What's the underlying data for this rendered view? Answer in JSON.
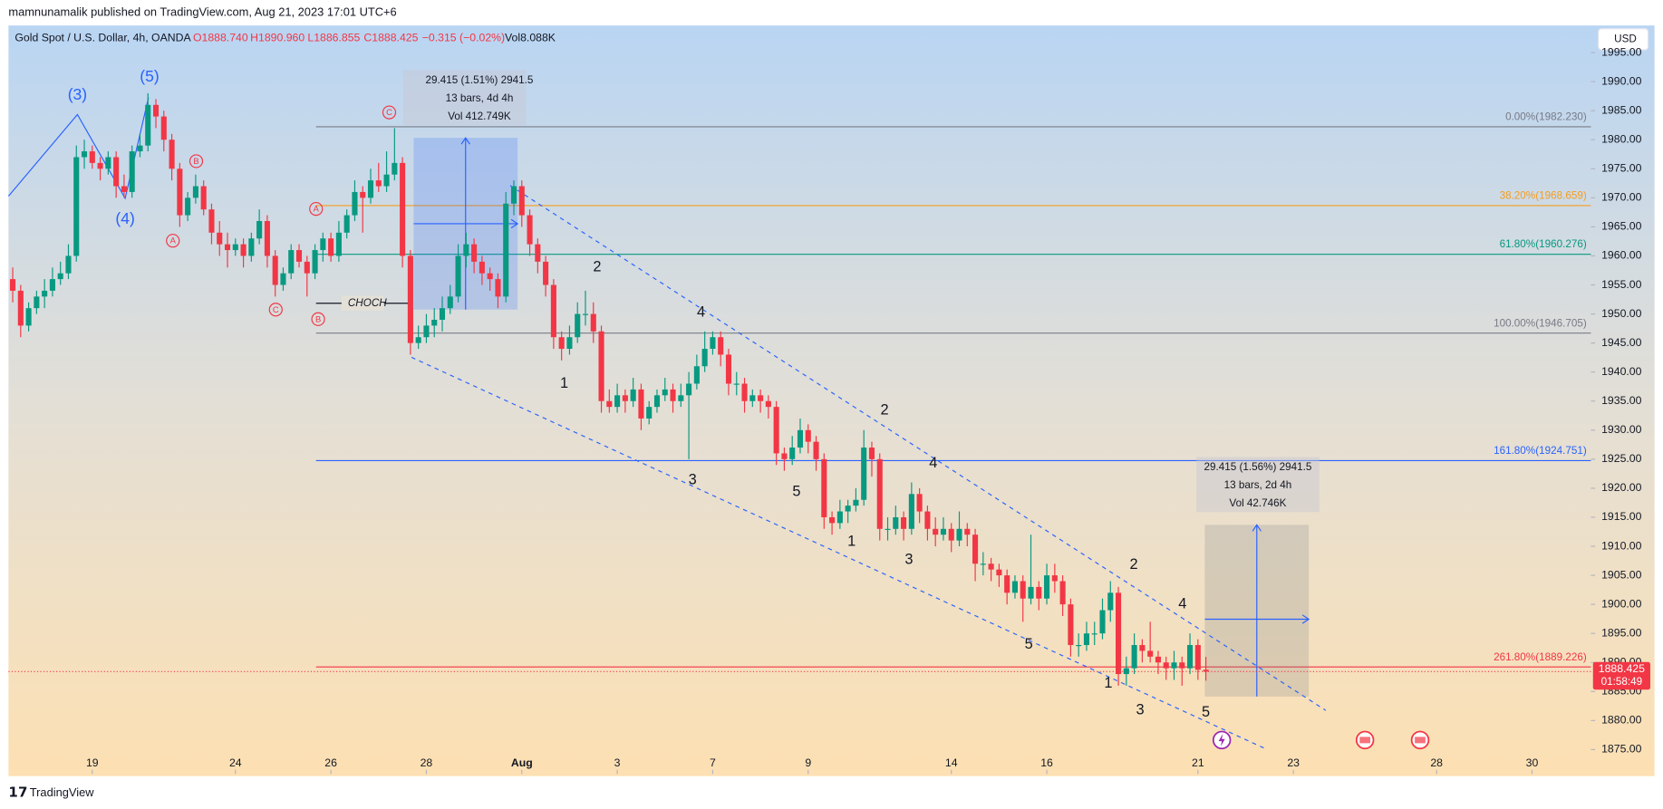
{
  "header": {
    "published": "mamnunamalik published on TradingView.com, Aug 21, 2023 17:01 UTC+6",
    "symbol": "Gold Spot / U.S. Dollar, 4h, OANDA",
    "open": "O1888.740",
    "high": "H1890.960",
    "low": "L1886.855",
    "close": "C1888.425",
    "change": "−0.315 (−0.02%)",
    "volume": "Vol8.088K",
    "currency": "USD",
    "brand": "TradingView"
  },
  "chart_data": {
    "type": "candlestick",
    "up_color": "#089981",
    "down_color": "#f23645",
    "ohlc": [
      [
        1956,
        1958,
        1952,
        1954
      ],
      [
        1954,
        1955,
        1946,
        1948
      ],
      [
        1948,
        1952,
        1947,
        1951
      ],
      [
        1951,
        1954,
        1950,
        1953
      ],
      [
        1953,
        1956,
        1951,
        1954
      ],
      [
        1954,
        1958,
        1953,
        1956
      ],
      [
        1956,
        1959,
        1955,
        1957
      ],
      [
        1957,
        1962,
        1956,
        1960
      ],
      [
        1960,
        1979,
        1959,
        1977
      ],
      [
        1977,
        1980,
        1975,
        1978
      ],
      [
        1978,
        1979,
        1975,
        1976
      ],
      [
        1976,
        1977,
        1973,
        1975
      ],
      [
        1975,
        1978,
        1974,
        1977
      ],
      [
        1977,
        1978,
        1970,
        1972
      ],
      [
        1972,
        1974,
        1970,
        1971
      ],
      [
        1971,
        1979,
        1970,
        1978
      ],
      [
        1978,
        1981,
        1977,
        1979
      ],
      [
        1979,
        1988,
        1978,
        1986
      ],
      [
        1986,
        1987,
        1982,
        1984
      ],
      [
        1984,
        1985,
        1978,
        1980
      ],
      [
        1980,
        1981,
        1973,
        1975
      ],
      [
        1975,
        1976,
        1965,
        1967
      ],
      [
        1967,
        1971,
        1966,
        1970
      ],
      [
        1970,
        1974,
        1969,
        1972
      ],
      [
        1972,
        1973,
        1967,
        1968
      ],
      [
        1968,
        1969,
        1962,
        1964
      ],
      [
        1964,
        1966,
        1960,
        1962
      ],
      [
        1962,
        1964,
        1958,
        1961
      ],
      [
        1961,
        1963,
        1960,
        1962
      ],
      [
        1962,
        1963,
        1958,
        1960
      ],
      [
        1960,
        1964,
        1959,
        1963
      ],
      [
        1963,
        1968,
        1962,
        1966
      ],
      [
        1966,
        1967,
        1958,
        1960
      ],
      [
        1960,
        1961,
        1953,
        1955
      ],
      [
        1955,
        1958,
        1954,
        1957
      ],
      [
        1957,
        1962,
        1956,
        1961
      ],
      [
        1961,
        1962,
        1958,
        1959
      ],
      [
        1959,
        1960,
        1953,
        1957
      ],
      [
        1957,
        1962,
        1956,
        1961
      ],
      [
        1961,
        1964,
        1959,
        1963
      ],
      [
        1963,
        1964,
        1959,
        1960
      ],
      [
        1960,
        1966,
        1959,
        1964
      ],
      [
        1964,
        1968,
        1963,
        1967
      ],
      [
        1967,
        1973,
        1966,
        1971
      ],
      [
        1971,
        1972,
        1964,
        1970
      ],
      [
        1970,
        1975,
        1969,
        1973
      ],
      [
        1973,
        1976,
        1971,
        1972
      ],
      [
        1972,
        1978,
        1971,
        1974
      ],
      [
        1974,
        1982,
        1973,
        1976
      ],
      [
        1976,
        1977,
        1958,
        1960
      ],
      [
        1960,
        1961,
        1943,
        1945
      ],
      [
        1945,
        1948,
        1944,
        1946
      ],
      [
        1946,
        1950,
        1945,
        1948
      ],
      [
        1948,
        1951,
        1946,
        1949
      ],
      [
        1949,
        1953,
        1947,
        1951
      ],
      [
        1951,
        1955,
        1950,
        1953
      ],
      [
        1953,
        1962,
        1952,
        1960
      ],
      [
        1960,
        1964,
        1958,
        1962
      ],
      [
        1962,
        1963,
        1957,
        1959
      ],
      [
        1959,
        1960,
        1955,
        1957
      ],
      [
        1957,
        1958,
        1954,
        1956
      ],
      [
        1956,
        1957,
        1951,
        1953
      ],
      [
        1953,
        1971,
        1952,
        1969
      ],
      [
        1969,
        1973,
        1967,
        1972
      ],
      [
        1972,
        1973,
        1965,
        1967
      ],
      [
        1967,
        1968,
        1960,
        1962
      ],
      [
        1962,
        1963,
        1957,
        1959
      ],
      [
        1959,
        1960,
        1953,
        1955
      ],
      [
        1955,
        1956,
        1944,
        1946
      ],
      [
        1946,
        1947,
        1942,
        1944
      ],
      [
        1944,
        1948,
        1943,
        1946
      ],
      [
        1946,
        1952,
        1945,
        1950
      ],
      [
        1950,
        1954,
        1948,
        1950
      ],
      [
        1950,
        1952,
        1945,
        1947
      ],
      [
        1947,
        1948,
        1933,
        1935
      ],
      [
        1935,
        1937,
        1933,
        1934
      ],
      [
        1934,
        1938,
        1933,
        1936
      ],
      [
        1936,
        1937,
        1933,
        1935
      ],
      [
        1935,
        1939,
        1934,
        1937
      ],
      [
        1937,
        1938,
        1930,
        1932
      ],
      [
        1932,
        1935,
        1931,
        1934
      ],
      [
        1934,
        1937,
        1933,
        1936
      ],
      [
        1936,
        1939,
        1935,
        1937
      ],
      [
        1937,
        1938,
        1933,
        1935
      ],
      [
        1935,
        1938,
        1934,
        1936
      ],
      [
        1936,
        1940,
        1925,
        1938
      ],
      [
        1938,
        1943,
        1937,
        1941
      ],
      [
        1941,
        1947,
        1940,
        1944
      ],
      [
        1944,
        1947,
        1943,
        1946
      ],
      [
        1946,
        1947,
        1941,
        1943
      ],
      [
        1943,
        1944,
        1936,
        1938
      ],
      [
        1938,
        1940,
        1936,
        1938
      ],
      [
        1938,
        1939,
        1933,
        1935
      ],
      [
        1935,
        1937,
        1934,
        1936
      ],
      [
        1936,
        1937,
        1933,
        1935
      ],
      [
        1935,
        1936,
        1932,
        1934
      ],
      [
        1934,
        1935,
        1924,
        1926
      ],
      [
        1926,
        1927,
        1923,
        1925
      ],
      [
        1925,
        1929,
        1924,
        1927
      ],
      [
        1927,
        1932,
        1926,
        1930
      ],
      [
        1930,
        1931,
        1926,
        1928
      ],
      [
        1928,
        1929,
        1923,
        1925
      ],
      [
        1925,
        1926,
        1913,
        1915
      ],
      [
        1915,
        1916,
        1912,
        1914
      ],
      [
        1914,
        1918,
        1913,
        1916
      ],
      [
        1916,
        1918,
        1914,
        1917
      ],
      [
        1917,
        1920,
        1916,
        1918
      ],
      [
        1918,
        1930,
        1917,
        1927
      ],
      [
        1927,
        1928,
        1922,
        1925
      ],
      [
        1925,
        1926,
        1911,
        1913
      ],
      [
        1913,
        1915,
        1911,
        1913
      ],
      [
        1913,
        1917,
        1912,
        1915
      ],
      [
        1915,
        1916,
        1911,
        1913
      ],
      [
        1913,
        1921,
        1912,
        1919
      ],
      [
        1919,
        1920,
        1914,
        1916
      ],
      [
        1916,
        1917,
        1911,
        1913
      ],
      [
        1913,
        1915,
        1910,
        1912
      ],
      [
        1912,
        1915,
        1911,
        1913
      ],
      [
        1913,
        1914,
        1909,
        1911
      ],
      [
        1911,
        1916,
        1910,
        1913
      ],
      [
        1913,
        1914,
        1910,
        1912
      ],
      [
        1912,
        1913,
        1904,
        1907
      ],
      [
        1907,
        1909,
        1905,
        1907
      ],
      [
        1907,
        1908,
        1904,
        1906
      ],
      [
        1906,
        1907,
        1903,
        1905
      ],
      [
        1905,
        1906,
        1900,
        1902
      ],
      [
        1902,
        1905,
        1901,
        1904
      ],
      [
        1904,
        1905,
        1897,
        1901
      ],
      [
        1901,
        1912,
        1900,
        1903
      ],
      [
        1903,
        1904,
        1899,
        1901
      ],
      [
        1901,
        1907,
        1900,
        1905
      ],
      [
        1905,
        1907,
        1902,
        1904
      ],
      [
        1904,
        1905,
        1898,
        1900
      ],
      [
        1900,
        1901,
        1891,
        1893
      ],
      [
        1893,
        1895,
        1891,
        1893
      ],
      [
        1893,
        1897,
        1892,
        1895
      ],
      [
        1895,
        1897,
        1893,
        1895
      ],
      [
        1895,
        1901,
        1894,
        1899
      ],
      [
        1899,
        1904,
        1897,
        1902
      ],
      [
        1902,
        1903,
        1886,
        1888
      ],
      [
        1888,
        1891,
        1886,
        1889
      ],
      [
        1889,
        1895,
        1888,
        1893
      ],
      [
        1893,
        1894,
        1890,
        1892
      ],
      [
        1892,
        1897,
        1890,
        1891
      ],
      [
        1891,
        1892,
        1888,
        1890
      ],
      [
        1890,
        1891,
        1887,
        1889
      ],
      [
        1889,
        1892,
        1887,
        1890
      ],
      [
        1890,
        1891,
        1886,
        1889
      ],
      [
        1889,
        1895,
        1888,
        1893
      ],
      [
        1893,
        1894,
        1887,
        1888.74
      ],
      [
        1888.74,
        1890.96,
        1886.855,
        1888.425
      ]
    ],
    "ylim": [
      1870.8,
      1999.67
    ],
    "yticks": [
      {
        "value": 1875,
        "label": "1875.00"
      },
      {
        "value": 1880,
        "label": "1880.00"
      },
      {
        "value": 1885,
        "label": "1885.00"
      },
      {
        "value": 1890,
        "label": "1890.00"
      },
      {
        "value": 1895,
        "label": "1895.00"
      },
      {
        "value": 1900,
        "label": "1900.00"
      },
      {
        "value": 1905,
        "label": "1905.00"
      },
      {
        "value": 1910,
        "label": "1910.00"
      },
      {
        "value": 1915,
        "label": "1915.00"
      },
      {
        "value": 1920,
        "label": "1920.00"
      },
      {
        "value": 1925,
        "label": "1925.00"
      },
      {
        "value": 1930,
        "label": "1930.00"
      },
      {
        "value": 1935,
        "label": "1935.00"
      },
      {
        "value": 1940,
        "label": "1940.00"
      },
      {
        "value": 1945,
        "label": "1945.00"
      },
      {
        "value": 1950,
        "label": "1950.00"
      },
      {
        "value": 1955,
        "label": "1955.00"
      },
      {
        "value": 1960,
        "label": "1960.00"
      },
      {
        "value": 1965,
        "label": "1965.00"
      },
      {
        "value": 1970,
        "label": "1970.00"
      },
      {
        "value": 1975,
        "label": "1975.00"
      },
      {
        "value": 1980,
        "label": "1980.00"
      },
      {
        "value": 1985,
        "label": "1985.00"
      },
      {
        "value": 1990,
        "label": "1990.00"
      },
      {
        "value": 1995,
        "label": "1995.00"
      }
    ],
    "xlim": [
      -0.533,
      198.4
    ],
    "xticks": [
      {
        "value": 10,
        "label": "19"
      },
      {
        "value": 28,
        "label": "24"
      },
      {
        "value": 40,
        "label": "26"
      },
      {
        "value": 52,
        "label": "28"
      },
      {
        "value": 64,
        "label": "Aug"
      },
      {
        "value": 76,
        "label": "3"
      },
      {
        "value": 88,
        "label": "7"
      },
      {
        "value": 100,
        "label": "9"
      },
      {
        "value": 118,
        "label": "14"
      },
      {
        "value": 130,
        "label": "16"
      },
      {
        "value": 149,
        "label": "21"
      },
      {
        "value": 161,
        "label": "23"
      },
      {
        "value": 179,
        "label": "28"
      },
      {
        "value": 191,
        "label": "30"
      }
    ],
    "fib_levels": [
      {
        "label": "0.00%(1982.230)",
        "value": 1982.23,
        "color": "#787b86"
      },
      {
        "label": "38.20%(1968.659)",
        "value": 1968.659,
        "color": "#f59d1f"
      },
      {
        "label": "61.80%(1960.276)",
        "value": 1960.276,
        "color": "#089981"
      },
      {
        "label": "100.00%(1946.705)",
        "value": 1946.705,
        "color": "#787b86"
      },
      {
        "label": "161.80%(1924.751)",
        "value": 1924.751,
        "color": "#2962ff"
      },
      {
        "label": "261.80%(1889.226)",
        "value": 1889.226,
        "color": "#f23645"
      }
    ],
    "countdown": "01:58:49",
    "waves_blue": [
      "(3)",
      "(5)",
      "(4)"
    ],
    "waves_red": [
      "C",
      "B",
      "A",
      "A",
      "C",
      "B"
    ],
    "waves_black": [
      "2",
      "1",
      "4",
      "3",
      "5",
      "2",
      "4",
      "1",
      "3",
      "5",
      "2",
      "4",
      "1",
      "3",
      "5"
    ],
    "choch": "CHOCH",
    "measures": [
      [
        "29.415 (1.51%) 2941.5",
        "13 bars, 4d 4h",
        "Vol 412.749K"
      ],
      [
        "29.415 (1.56%) 2941.5",
        "13 bars, 2d 4h",
        "Vol 42.746K"
      ]
    ]
  }
}
